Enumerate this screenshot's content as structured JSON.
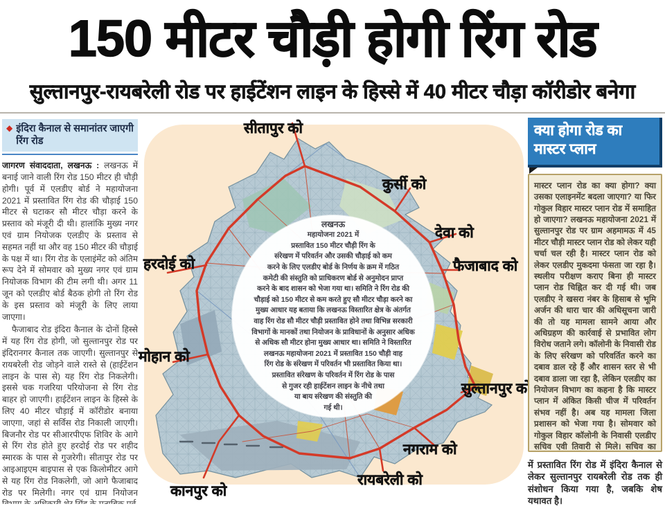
{
  "masthead": {
    "headline": "150 मीटर चौड़ी होगी रिंग रोड",
    "subheadline": "सुल्तानपुर-रायबरेली रोड पर हाईटेंशन लाइन के हिस्से में 40 मीटर चौड़ा कॉरीडोर बनेगा"
  },
  "left_column": {
    "kicker_bullet": "◆",
    "kicker": "इंदिरा कैनाल से समानांतर जाएगी रिंग रोड",
    "byline": "जागरण संवाददाता, लखनऊ :",
    "para1": "लखनऊ में बनाई जाने वाली रिंग रोड 150 मीटर ही चौड़ी होगी। पूर्व में एलडीए बोर्ड ने महायोजना 2021 में प्रस्तावित रिंग रोड की चौड़ाई 150 मीटर से घटाकर सौ मीटर चौड़ा करने के प्रस्ताव को मंजूरी दी थी। हालांकि मुख्य नगर एवं ग्राम नियोजक एलडीए के प्रस्ताव से सहमत नहीं था और वह 150 मीटर की चौड़ाई के पक्ष में था। रिंग रोड के एलाइंमेंट को अंतिम रूप देने में सोमवार को मुख्य नगर एवं ग्राम नियोजक विभाग की टीम लगी थी। अगर 11 जून को एलडीए बोर्ड बैठक होगी तो रिंग रोड के इस प्रस्ताव को मंजूरी के लिए लाया जाएगा।",
    "para2": "फैजाबाद रोड इंदिरा कैनाल के दोनों हिस्से में यह रिंग रोड होगी, जो सुल्तानपुर रोड पर इंदिरानगर कैनाल तक जाएगी। सुल्तानपुर से रायबरेली रोड जोड़ने वाले रास्ते से (हाईटेंशन लाइन के पास से) यह रिंग रोड निकलेगी। इससे चक गजरिया परियोजना से रिंग रोड बाहर हो जाएगी। हाईटेंशन लाइन के हिस्से के लिए 40 मीटर चौड़ाई में कॉरीडोर बनाया जाएगा, जहां से सर्विस रोड निकाली जाएगी। बिजनौर रोड पर सीआरपीएफ शिविर के आगे से रिंग रोड होते हुए हरदोई रोड पर शहीद स्मारक के पास से गुजरेगी। सीतापुर रोड पर आइआइएम बाइपास से एक किलोमीटर आगे से यह रिंग रोड निकलेगी, जो आगे फैजाबाद रोड पर मिलेगी। नगर एवं ग्राम नियोजन विभाग के अधिकारी शेर सिंह के मुताबिक पूर्व"
  },
  "map": {
    "labels": [
      "सीतापुर को",
      "कुर्सी को",
      "देवा को",
      "फैजाबाद को",
      "हरदोई को",
      "मोहान को",
      "सुल्तानपुर को",
      "नगराम को",
      "रायबरेली को",
      "कानपुर को"
    ],
    "circle_lines": [
      "लखनऊ",
      "महायोजना 2021 में",
      "प्रस्तावित 150 मीटर चौड़ी रिंग के",
      "संरेखण में परिवर्तन और उसकी चौड़ाई को कम",
      "करने के लिए एलडीए बोर्ड के निर्णय के क्रम में गठित",
      "कमेटी की संस्तुति को प्राधिकरण बोर्ड से अनुमोदन प्राप्त",
      "करने के बाद शासन को भेजा गया था। समिति ने रिंग रोड की",
      "चौड़ाई को 150 मीटर से कम करते हुए सौ मीटर चौड़ा करने का",
      "मुख्य आधार यह बताया कि लखनऊ विस्तारित क्षेत्र के अंतर्गत",
      "वाह रिंग रोड सौ मीटर चौड़ी प्रस्तावित होने तथा विभिन्न सरकारी",
      "विभागों के मानकों तथा नियोजन के प्राविधानों के अनुसार अधिक",
      "से अधिक सौ मीटर होना मुख्य आधार था। समिति ने विस्तारित",
      "लखनऊ महायोजना 2021 में प्रस्तावित 150 चौड़ी वाह",
      "रिंग रोड के संरेखण में परिवर्तन भी प्रस्तावित किया था।",
      "प्रस्तावित संरेखण के परिवर्तन में रिंग रोड के पास",
      "से गुजर रही हाईटेंशन लाइन के नीचे तथा",
      "या बाय संरेखण की संस्तुति की",
      "गई थी।"
    ]
  },
  "right_column": {
    "header_line1": "क्या होगा रोड  का",
    "header_line2": "मास्टर प्लान",
    "body": "मास्टर प्लान रोड का क्या होगा? क्या उसका एलाइनमेंट बदला जाएगा? या फिर गोकुल विहार मास्टर प्लान रोड में समाहित हो जाएगा? लखनऊ महायोजना 2021 में सुल्तानपुर रोड पर ग्राम अहमामऊ में 45 मीटर चौड़ी मास्टर प्लान रोड को लेकर यही चर्चा चल रही है। मास्टर प्लान रोड को लेकर एलडीए मुकदमा फंसता जा रहा है। स्थलीय परीक्षण कराए बिना ही मास्टर प्लान रोड चिह्नित कर दी गई थी। जब एलडीए ने खसरा नंबर के हिसाब से भूमि अर्जन की धारा चार की अधिसूचना जारी की तो यह मामला सामने आया और अधिग्रहण की कार्रवाई से प्रभावित लोग विरोध जताने लगे। कॉलोनी के निवासी रोड के लिए संरेखण को परिवर्तित करने का दबाव डाल रहे हैं और शासन स्तर से भी दबाव डाला जा रहा है, लेकिन एलडीए का नियोजन विभाग का कहना है कि मास्टर प्लान में अंकित किसी चीज में परिवर्तन संभव नहीं है। अब यह मामला जिला प्रशासन को भेजा गया है। सोमवार को गोकुल विहार कॉलोनी के निवासी एलडीए सचिव एवी तिवारी से मिले। सचिव का कहना है कि मामले का परीक्षण कराया जा रहा है। यह देखा जाएगा कि मास्टर प्लान रोड से कम से कम लोग ही प्रभावित हों।",
    "continuation": "में प्रस्तावित रिंग रोड में इंदिरा कैनाल से लेकर सुल्तानपुर रायबरेली रोड तक ही संशोधन किया गया है, जबकि शेष यथावत है।"
  },
  "colors": {
    "accent_red": "#d43a28",
    "header_blue": "#2e7dbd",
    "kicker_bg": "#cfe4f2",
    "panel_peach": "#fbe8cf",
    "map_base": "#b6c9d3",
    "box_bg": "#f2ecda",
    "box_border": "#b7a269"
  }
}
